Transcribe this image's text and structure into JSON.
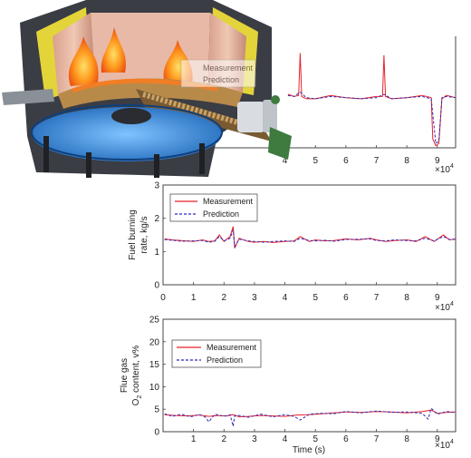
{
  "colors": {
    "measurement": "#e8202a",
    "prediction": "#2b2bb8",
    "axis": "#444444"
  },
  "illustration": {
    "icon": "biomass-grate-boiler-illustration",
    "ghost_legend": {
      "measurement": "Measurement",
      "prediction": "Prediction"
    }
  },
  "chart_data": [
    {
      "type": "line",
      "panel": "top",
      "title": "",
      "xlabel": "",
      "ylabel": "",
      "x_exponent_label": "×10",
      "x_exponent_sup": "4",
      "xlim": [
        0,
        9.6
      ],
      "x_ticks": [
        "4",
        "5",
        "6",
        "7",
        "8",
        "9"
      ],
      "x_tick_values": [
        4,
        5,
        6,
        7,
        8,
        9
      ],
      "grid": false,
      "series": [
        {
          "name": "Measurement",
          "style": "solid",
          "x": [
            4.1,
            4.3,
            4.45,
            4.5,
            4.55,
            4.7,
            5.0,
            5.5,
            6.0,
            6.5,
            7.0,
            7.2,
            7.25,
            7.3,
            7.5,
            8.0,
            8.5,
            8.8,
            8.85,
            8.95,
            9.05,
            9.15,
            9.3,
            9.6
          ],
          "y": [
            0.48,
            0.46,
            0.47,
            0.85,
            0.46,
            0.44,
            0.44,
            0.47,
            0.45,
            0.44,
            0.46,
            0.46,
            0.83,
            0.46,
            0.44,
            0.45,
            0.47,
            0.45,
            0.08,
            0.02,
            0.04,
            0.44,
            0.47,
            0.45
          ]
        },
        {
          "name": "Prediction",
          "style": "dashed",
          "x": [
            4.1,
            4.3,
            4.5,
            4.7,
            5.0,
            5.5,
            6.0,
            6.5,
            7.0,
            7.25,
            7.5,
            8.0,
            8.5,
            8.8,
            8.95,
            9.05,
            9.15,
            9.3,
            9.6
          ],
          "y": [
            0.47,
            0.46,
            0.5,
            0.45,
            0.44,
            0.46,
            0.45,
            0.44,
            0.45,
            0.48,
            0.44,
            0.45,
            0.46,
            0.44,
            0.04,
            0.06,
            0.45,
            0.46,
            0.45
          ]
        }
      ]
    },
    {
      "type": "line",
      "panel": "middle",
      "title": "",
      "xlabel": "",
      "ylabel_line1": "Fuel burning",
      "ylabel_line2": "rate, kg/s",
      "x_exponent_label": "×10",
      "x_exponent_sup": "4",
      "xlim": [
        0,
        9.6
      ],
      "ylim": [
        0,
        3
      ],
      "x_ticks": [
        "0",
        "1",
        "2",
        "3",
        "4",
        "5",
        "6",
        "7",
        "8",
        "9"
      ],
      "x_tick_values": [
        0,
        1,
        2,
        3,
        4,
        5,
        6,
        7,
        8,
        9
      ],
      "y_ticks": [
        "0",
        "1",
        "2",
        "3"
      ],
      "y_tick_values": [
        0,
        1,
        2,
        3
      ],
      "legend": "top-left",
      "grid": false,
      "series": [
        {
          "name": "Measurement",
          "style": "solid",
          "x": [
            0.05,
            0.3,
            0.6,
            1.0,
            1.3,
            1.5,
            1.7,
            1.85,
            2.0,
            2.2,
            2.3,
            2.35,
            2.5,
            2.8,
            3.0,
            3.3,
            3.6,
            4.0,
            4.3,
            4.5,
            4.8,
            5.0,
            5.3,
            5.6,
            6.0,
            6.4,
            6.8,
            7.0,
            7.3,
            7.6,
            8.0,
            8.3,
            8.6,
            8.9,
            9.2,
            9.4,
            9.6
          ],
          "y": [
            1.38,
            1.35,
            1.33,
            1.3,
            1.35,
            1.3,
            1.32,
            1.5,
            1.3,
            1.45,
            1.75,
            1.1,
            1.4,
            1.3,
            1.28,
            1.3,
            1.27,
            1.3,
            1.32,
            1.45,
            1.3,
            1.35,
            1.32,
            1.33,
            1.38,
            1.35,
            1.4,
            1.35,
            1.3,
            1.33,
            1.35,
            1.3,
            1.45,
            1.3,
            1.5,
            1.35,
            1.38
          ]
        },
        {
          "name": "Prediction",
          "style": "dashed",
          "x": [
            0.05,
            0.3,
            0.6,
            1.0,
            1.3,
            1.5,
            1.7,
            1.85,
            2.0,
            2.2,
            2.3,
            2.35,
            2.5,
            2.8,
            3.0,
            3.3,
            3.6,
            4.0,
            4.3,
            4.5,
            4.8,
            5.0,
            5.3,
            5.6,
            6.0,
            6.4,
            6.8,
            7.0,
            7.3,
            7.6,
            8.0,
            8.3,
            8.6,
            8.9,
            9.2,
            9.4,
            9.6
          ],
          "y": [
            1.36,
            1.34,
            1.31,
            1.32,
            1.33,
            1.28,
            1.31,
            1.45,
            1.32,
            1.4,
            1.65,
            1.15,
            1.37,
            1.32,
            1.3,
            1.28,
            1.3,
            1.32,
            1.3,
            1.4,
            1.33,
            1.32,
            1.34,
            1.31,
            1.36,
            1.37,
            1.38,
            1.33,
            1.32,
            1.35,
            1.33,
            1.32,
            1.4,
            1.32,
            1.45,
            1.36,
            1.37
          ]
        }
      ]
    },
    {
      "type": "line",
      "panel": "bottom",
      "title": "",
      "xlabel": "Time (s)",
      "ylabel_line1": "Flue gas",
      "ylabel_line2_main": "O",
      "ylabel_line2_sub": "2",
      "ylabel_line2_rest": " content, v%",
      "x_exponent_label": "×10",
      "x_exponent_sup": "4",
      "xlim": [
        0,
        9.6
      ],
      "ylim": [
        0,
        25
      ],
      "x_ticks": [
        "1",
        "2",
        "3",
        "4",
        "5",
        "6",
        "7",
        "8",
        "9"
      ],
      "x_tick_values": [
        1,
        2,
        3,
        4,
        5,
        6,
        7,
        8,
        9
      ],
      "y_ticks": [
        "0",
        "5",
        "10",
        "15",
        "20",
        "25"
      ],
      "y_tick_values": [
        0,
        5,
        10,
        15,
        20,
        25
      ],
      "legend": "top-left",
      "grid": false,
      "series": [
        {
          "name": "Measurement",
          "style": "solid",
          "x": [
            0.05,
            0.4,
            0.8,
            1.2,
            1.5,
            1.8,
            2.1,
            2.3,
            2.5,
            2.8,
            3.2,
            3.6,
            4.0,
            4.4,
            4.8,
            5.2,
            5.6,
            6.0,
            6.5,
            7.0,
            7.5,
            8.0,
            8.5,
            8.8,
            9.0,
            9.3,
            9.6
          ],
          "y": [
            3.8,
            3.6,
            3.5,
            3.7,
            3.4,
            3.6,
            3.5,
            3.8,
            3.3,
            3.4,
            3.6,
            3.5,
            3.4,
            3.7,
            3.8,
            4.0,
            4.2,
            4.4,
            4.3,
            4.5,
            4.4,
            4.2,
            4.5,
            4.8,
            4.1,
            4.3,
            4.4
          ]
        },
        {
          "name": "Prediction",
          "style": "dashed",
          "x": [
            0.05,
            0.3,
            0.6,
            0.9,
            1.2,
            1.4,
            1.5,
            1.7,
            2.0,
            2.2,
            2.3,
            2.35,
            2.5,
            2.8,
            3.2,
            3.6,
            4.0,
            4.3,
            4.5,
            4.8,
            5.2,
            5.6,
            6.0,
            6.5,
            7.0,
            7.5,
            8.0,
            8.5,
            8.7,
            8.8,
            9.0,
            9.3,
            9.6
          ],
          "y": [
            4.0,
            3.4,
            3.9,
            3.3,
            3.8,
            3.2,
            2.2,
            3.9,
            3.4,
            3.8,
            1.2,
            3.5,
            3.6,
            3.2,
            3.9,
            3.3,
            3.8,
            3.4,
            2.6,
            3.9,
            4.1,
            4.0,
            4.5,
            4.2,
            4.6,
            4.3,
            4.4,
            4.1,
            2.8,
            5.2,
            3.9,
            4.5,
            4.3
          ]
        }
      ]
    }
  ]
}
